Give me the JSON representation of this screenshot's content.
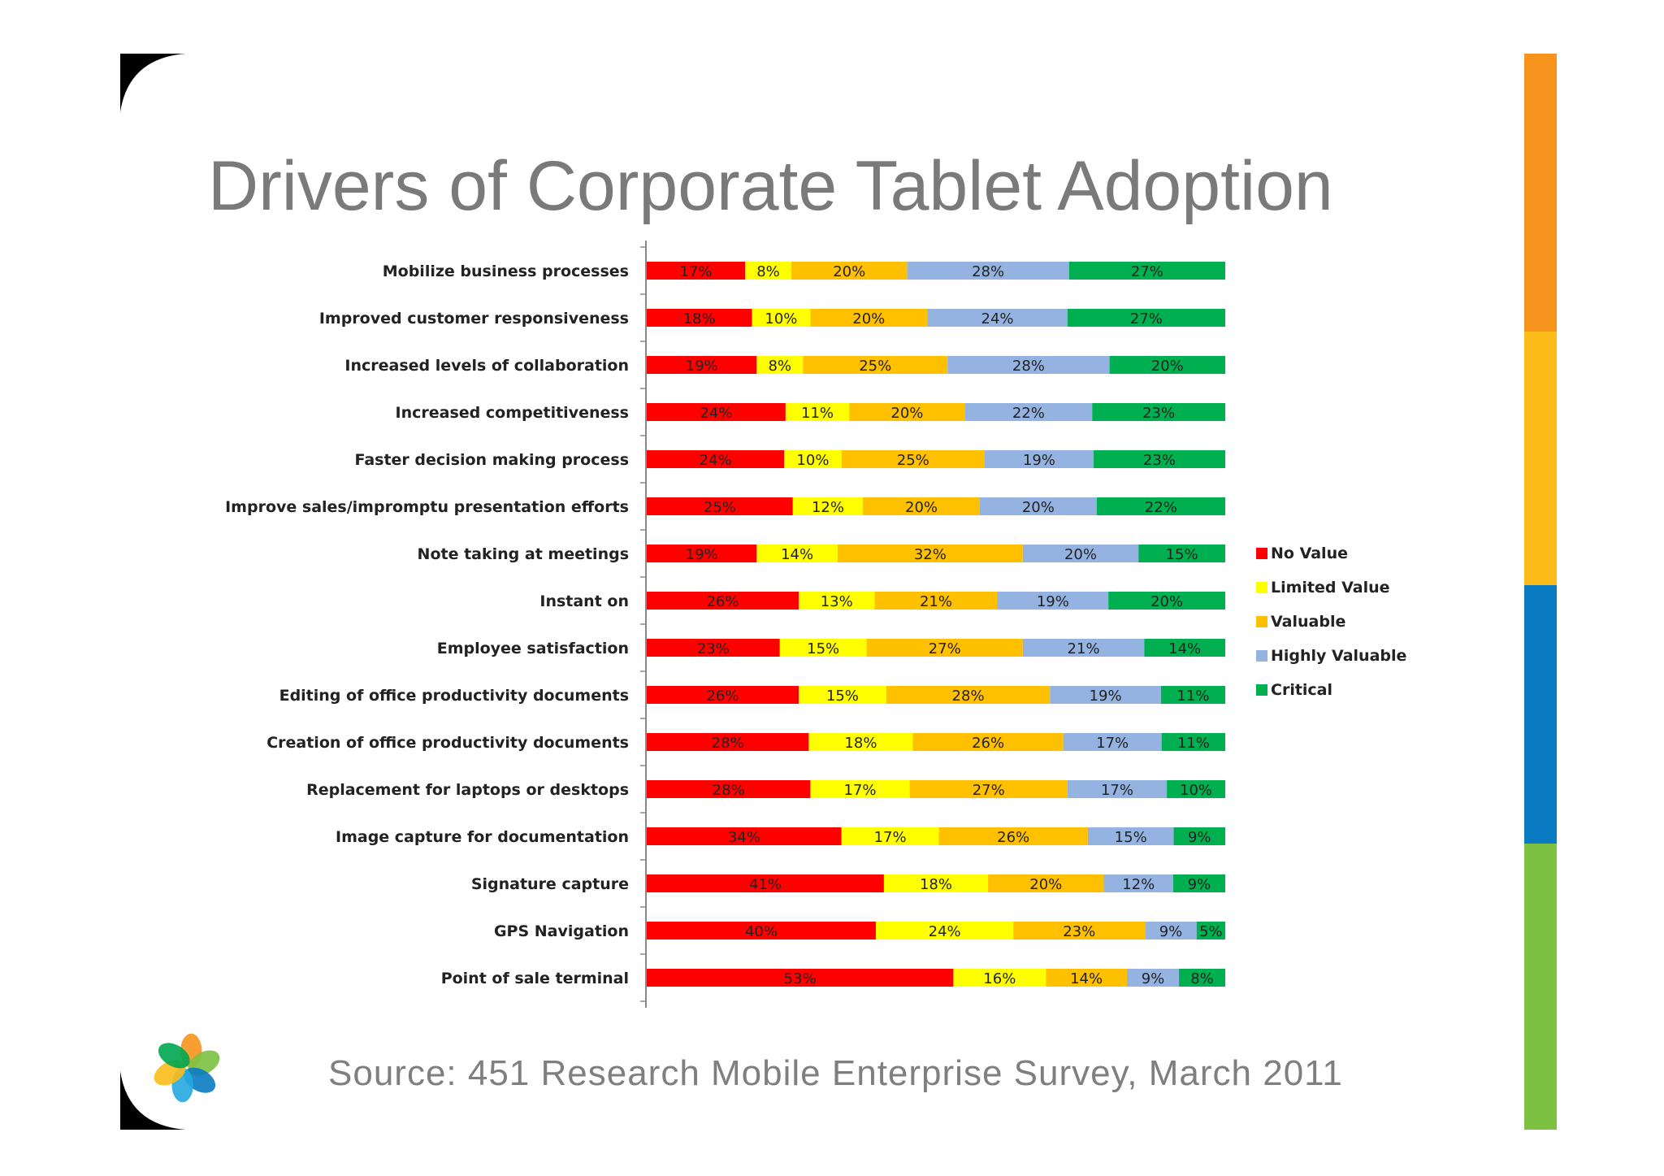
{
  "slide": {
    "title": "Drivers of Corporate Tablet Adoption",
    "source": "Source: 451 Research Mobile Enterprise Survey, March 2011"
  },
  "theme": {
    "stripe_colors": [
      "#f7941d",
      "#fbbc1a",
      "#0a7bc2",
      "#7cc142"
    ],
    "logo_colors": [
      "#f7941d",
      "#7cc142",
      "#0a7bc2",
      "#26a9e0",
      "#fbbc1a",
      "#00a651"
    ]
  },
  "chart_data": {
    "type": "bar",
    "orientation": "horizontal",
    "stacked": true,
    "percent": true,
    "legend_position": "right",
    "grid": false,
    "categories": [
      "Mobilize business processes",
      "Improved customer responsiveness",
      "Increased levels of collaboration",
      "Increased competitiveness",
      "Faster decision making process",
      "Improve sales/impromptu presentation efforts",
      "Note taking at meetings",
      "Instant on",
      "Employee satisfaction",
      "Editing of office productivity documents",
      "Creation of office productivity documents",
      "Replacement for laptops or desktops",
      "Image capture for documentation",
      "Signature capture",
      "GPS Navigation",
      "Point of sale terminal"
    ],
    "series": [
      {
        "name": "No Value",
        "color": "#ff0000",
        "values": [
          17,
          18,
          19,
          24,
          24,
          25,
          19,
          26,
          23,
          26,
          28,
          28,
          34,
          41,
          40,
          53
        ]
      },
      {
        "name": "Limited Value",
        "color": "#ffff00",
        "values": [
          8,
          10,
          8,
          11,
          10,
          12,
          14,
          13,
          15,
          15,
          18,
          17,
          17,
          18,
          24,
          16
        ]
      },
      {
        "name": "Valuable",
        "color": "#ffc000",
        "values": [
          20,
          20,
          25,
          20,
          25,
          20,
          32,
          21,
          27,
          28,
          26,
          27,
          26,
          20,
          23,
          14
        ]
      },
      {
        "name": "Highly Valuable",
        "color": "#95b3e0",
        "values": [
          28,
          24,
          28,
          22,
          19,
          20,
          20,
          19,
          21,
          19,
          17,
          17,
          15,
          12,
          9,
          9
        ]
      },
      {
        "name": "Critical",
        "color": "#00b050",
        "values": [
          27,
          27,
          20,
          23,
          23,
          22,
          15,
          20,
          14,
          11,
          11,
          10,
          9,
          9,
          5,
          8
        ]
      }
    ]
  }
}
